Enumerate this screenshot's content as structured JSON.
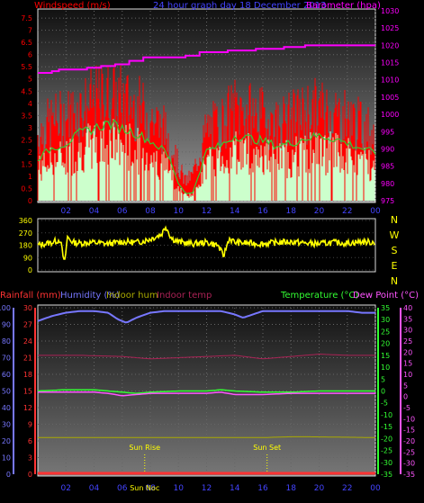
{
  "colors": {
    "background": "#000000",
    "panel_top": "#1a1a1a",
    "panel_bottom": "#8a8a8a",
    "wind_gust": "#ff0000",
    "wind_avg": "#ccffcc",
    "wind_avg_line": "#33cc33",
    "barometer": "#ff00ff",
    "direction": "#ffff00",
    "rainfall": "#ff3333",
    "humidity": "#7777ff",
    "indoor_hum": "#aaaa00",
    "indoor_temp": "#aa2255",
    "temperature": "#33ff33",
    "dew_point": "#ff55ff",
    "label_blue": "#4444ff",
    "label_yellow": "#ffff00"
  },
  "chart_data": [
    {
      "type": "line",
      "panel": "wind_barometer",
      "title": "24 hour graph day  18 December 2013",
      "left_axis_label": "Windspeed (m/s)",
      "right_axis_label": "Barometer (hpa)",
      "left_ticks": [
        "0",
        "0.5",
        "1",
        "1.5",
        "2",
        "2.5",
        "3",
        "3.5",
        "4",
        "4.5",
        "5",
        "5.5",
        "6",
        "6.5",
        "7",
        "7.5"
      ],
      "right_ticks": [
        "975",
        "980",
        "985",
        "990",
        "995",
        "1000",
        "1005",
        "1010",
        "1015",
        "1020",
        "1025",
        "1030"
      ],
      "x_ticks": [
        "02",
        "04",
        "06",
        "08",
        "10",
        "12",
        "14",
        "16",
        "18",
        "20",
        "22",
        "00"
      ],
      "x_range_hours": [
        0,
        24
      ],
      "ylim_left": [
        0,
        7.8
      ],
      "ylim_right": [
        975,
        1030
      ],
      "wind_gust_envelope": {
        "x": [
          0,
          1,
          2,
          3,
          4,
          5,
          6,
          7,
          8,
          9,
          9.5,
          10,
          10.5,
          11,
          12,
          13,
          14,
          15,
          16,
          17,
          18,
          19,
          20,
          21,
          22,
          23,
          24
        ],
        "y": [
          3.1,
          3.7,
          3.9,
          4.3,
          4.6,
          4.9,
          4.7,
          4.4,
          3.9,
          3.3,
          2.7,
          1.6,
          0.9,
          1.2,
          3.3,
          3.6,
          4.3,
          4.1,
          3.9,
          3.6,
          3.8,
          4.1,
          4.3,
          4.1,
          3.9,
          3.5,
          3.2
        ]
      },
      "wind_avg_envelope": {
        "x": [
          0,
          1,
          2,
          3,
          4,
          5,
          6,
          7,
          8,
          9,
          9.5,
          10,
          10.5,
          11,
          12,
          13,
          14,
          15,
          16,
          17,
          18,
          19,
          20,
          21,
          22,
          23,
          24
        ],
        "y": [
          1.7,
          2.1,
          2.3,
          2.7,
          2.9,
          3.1,
          2.9,
          2.7,
          2.4,
          2.0,
          1.5,
          0.7,
          0.3,
          0.3,
          2.0,
          2.2,
          2.6,
          2.5,
          2.4,
          2.2,
          2.3,
          2.5,
          2.6,
          2.5,
          2.3,
          2.1,
          1.9
        ]
      },
      "barometer_series": {
        "name": "Barometer",
        "x": [
          0,
          1,
          1.5,
          3.5,
          4.5,
          5.5,
          6.5,
          7.5,
          10.5,
          11.5,
          13.5,
          15.5,
          17.5,
          19,
          24
        ],
        "y": [
          1012,
          1012.5,
          1013,
          1013.5,
          1014,
          1014.5,
          1015.5,
          1016.5,
          1017,
          1018,
          1018.5,
          1019,
          1019.5,
          1020,
          1020
        ]
      }
    },
    {
      "type": "scatter",
      "panel": "wind_direction",
      "left_ticks": [
        "0",
        "90",
        "180",
        "270",
        "360"
      ],
      "right_labels": [
        "N",
        "W",
        "S",
        "E",
        "N"
      ],
      "ylim": [
        0,
        360
      ],
      "x_range_hours": [
        0,
        24
      ],
      "x": [
        0,
        1,
        1.6,
        1.9,
        2.1,
        2.5,
        3,
        4,
        5,
        6,
        7,
        7.5,
        8,
        8.8,
        9.1,
        9.5,
        10,
        11,
        12,
        12.8,
        13.2,
        13.6,
        14,
        15,
        16,
        17,
        18,
        19,
        20,
        21,
        22,
        23,
        24
      ],
      "y": [
        180,
        200,
        220,
        40,
        240,
        200,
        195,
        200,
        190,
        205,
        200,
        210,
        225,
        260,
        320,
        230,
        205,
        190,
        200,
        180,
        100,
        230,
        200,
        195,
        190,
        200,
        205,
        195,
        190,
        200,
        195,
        205,
        200
      ]
    },
    {
      "type": "line",
      "panel": "climate",
      "legend": {
        "rainfall": "Rainfall (mm)",
        "humidity": "Humidity (%)",
        "indoor_hum": "Indoor hum",
        "indoor_temp": "Indoor temp",
        "temperature": "Temperature (°C)",
        "dew_point": "Dew Point (°C)"
      },
      "humidity_ticks": [
        "0",
        "10",
        "20",
        "30",
        "40",
        "50",
        "60",
        "70",
        "80",
        "90",
        "100"
      ],
      "rain_ticks": [
        "0",
        "3",
        "6",
        "9",
        "12",
        "15",
        "18",
        "21",
        "24",
        "27",
        "30"
      ],
      "temp_ticks": [
        "-35",
        "-30",
        "-25",
        "-20",
        "-15",
        "-10",
        "-5",
        "0",
        "5",
        "10",
        "15",
        "20",
        "25",
        "30",
        "35"
      ],
      "dew_ticks": [
        "-35",
        "-30",
        "-25",
        "-20",
        "-15",
        "-10",
        "-5",
        "0",
        "5",
        "10",
        "15",
        "20",
        "25",
        "30",
        "35",
        "40"
      ],
      "x_ticks": [
        "02",
        "04",
        "06",
        "08",
        "10",
        "12",
        "14",
        "16",
        "18",
        "20",
        "22",
        "00"
      ],
      "x_range_hours": [
        0,
        24
      ],
      "ylim_humidity": [
        0,
        100
      ],
      "ylim_temp": [
        -35,
        35
      ],
      "sun_rise_label": "Sun Rise",
      "sun_set_label": "Sun Set",
      "bottom_label": "Sun Noc",
      "sun_rise_hour": 7.6,
      "sun_set_hour": 16.3,
      "series": [
        {
          "name": "Humidity",
          "x": [
            0,
            1,
            2,
            3,
            4,
            5,
            5.7,
            6.3,
            7,
            8,
            9,
            10,
            11,
            12,
            13,
            14,
            14.6,
            15.3,
            16,
            18,
            20,
            22,
            23,
            24
          ],
          "y": [
            92,
            95,
            97,
            98,
            98,
            97,
            93,
            91,
            94,
            97,
            98,
            98,
            98,
            98,
            98,
            96,
            94,
            96,
            98,
            98,
            98,
            98,
            97,
            97
          ]
        },
        {
          "name": "Indoor hum",
          "x": [
            0,
            4,
            8,
            12,
            16,
            18,
            19,
            24
          ],
          "y": [
            22,
            22,
            22,
            22,
            22,
            22.5,
            22.5,
            22
          ]
        },
        {
          "name": "Indoor temp",
          "x": [
            0,
            3,
            6,
            8,
            10,
            12,
            14,
            16,
            18,
            20,
            22,
            24
          ],
          "y": [
            15,
            15,
            14.5,
            13.5,
            14,
            14.5,
            15,
            13.5,
            14.5,
            15.5,
            15,
            15
          ]
        },
        {
          "name": "Temperature",
          "x": [
            0,
            2,
            4,
            5,
            6,
            7,
            8,
            10,
            12,
            13,
            14,
            16,
            18,
            20,
            22,
            24
          ],
          "y": [
            0,
            0.5,
            0.5,
            0,
            -0.5,
            -1,
            -0.5,
            0,
            0,
            0.5,
            0,
            -0.5,
            -0.5,
            0,
            0,
            0
          ]
        },
        {
          "name": "Dew Point",
          "x": [
            0,
            2,
            4,
            5,
            6,
            7,
            8,
            10,
            12,
            13,
            14,
            16,
            18,
            20,
            22,
            24
          ],
          "y": [
            -0.5,
            -0.5,
            -0.5,
            -1,
            -2,
            -1.5,
            -1,
            -1,
            -1,
            -0.5,
            -1.5,
            -1.5,
            -1,
            -1,
            -1,
            -1
          ]
        },
        {
          "name": "Rainfall",
          "x": [
            0,
            24
          ],
          "y": [
            0,
            0
          ]
        }
      ]
    }
  ]
}
